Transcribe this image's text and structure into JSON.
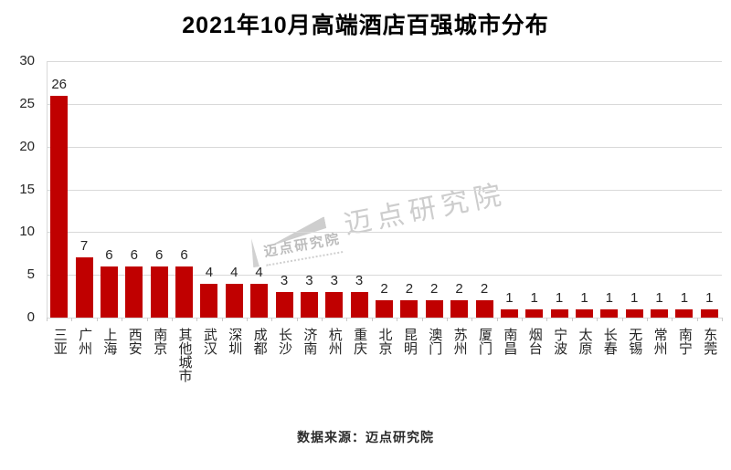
{
  "header": {
    "title": "2021年10月高端酒店百强城市分布"
  },
  "footer": {
    "source": "数据来源：迈点研究院"
  },
  "watermark": {
    "large_text": "迈点研究院",
    "small_text": "迈点研究院"
  },
  "colors": {
    "bar": "#c00000",
    "gridline": "#d9d9d9",
    "axis_text": "#262626",
    "title_text": "#000000",
    "watermark": "#cdcdcd"
  },
  "chart_data": {
    "type": "bar",
    "title": "2021年10月高端酒店百强城市分布",
    "categories": [
      "三亚",
      "广州",
      "上海",
      "西安",
      "南京",
      "其他城市",
      "武汉",
      "深圳",
      "成都",
      "长沙",
      "济南",
      "杭州",
      "重庆",
      "北京",
      "昆明",
      "澳门",
      "苏州",
      "厦门",
      "南昌",
      "烟台",
      "宁波",
      "太原",
      "长春",
      "无锡",
      "常州",
      "南宁",
      "东莞"
    ],
    "values": [
      26,
      7,
      6,
      6,
      6,
      6,
      4,
      4,
      4,
      3,
      3,
      3,
      3,
      2,
      2,
      2,
      2,
      2,
      1,
      1,
      1,
      1,
      1,
      1,
      1,
      1,
      1
    ],
    "xlabel": "",
    "ylabel": "",
    "ylim": [
      0,
      30
    ],
    "yticks": [
      0,
      5,
      10,
      15,
      20,
      25,
      30
    ],
    "grid": true,
    "legend": false,
    "bar_color": "#c00000",
    "value_labels_shown": true,
    "x_labels_orientation": "vertical-stacked"
  }
}
